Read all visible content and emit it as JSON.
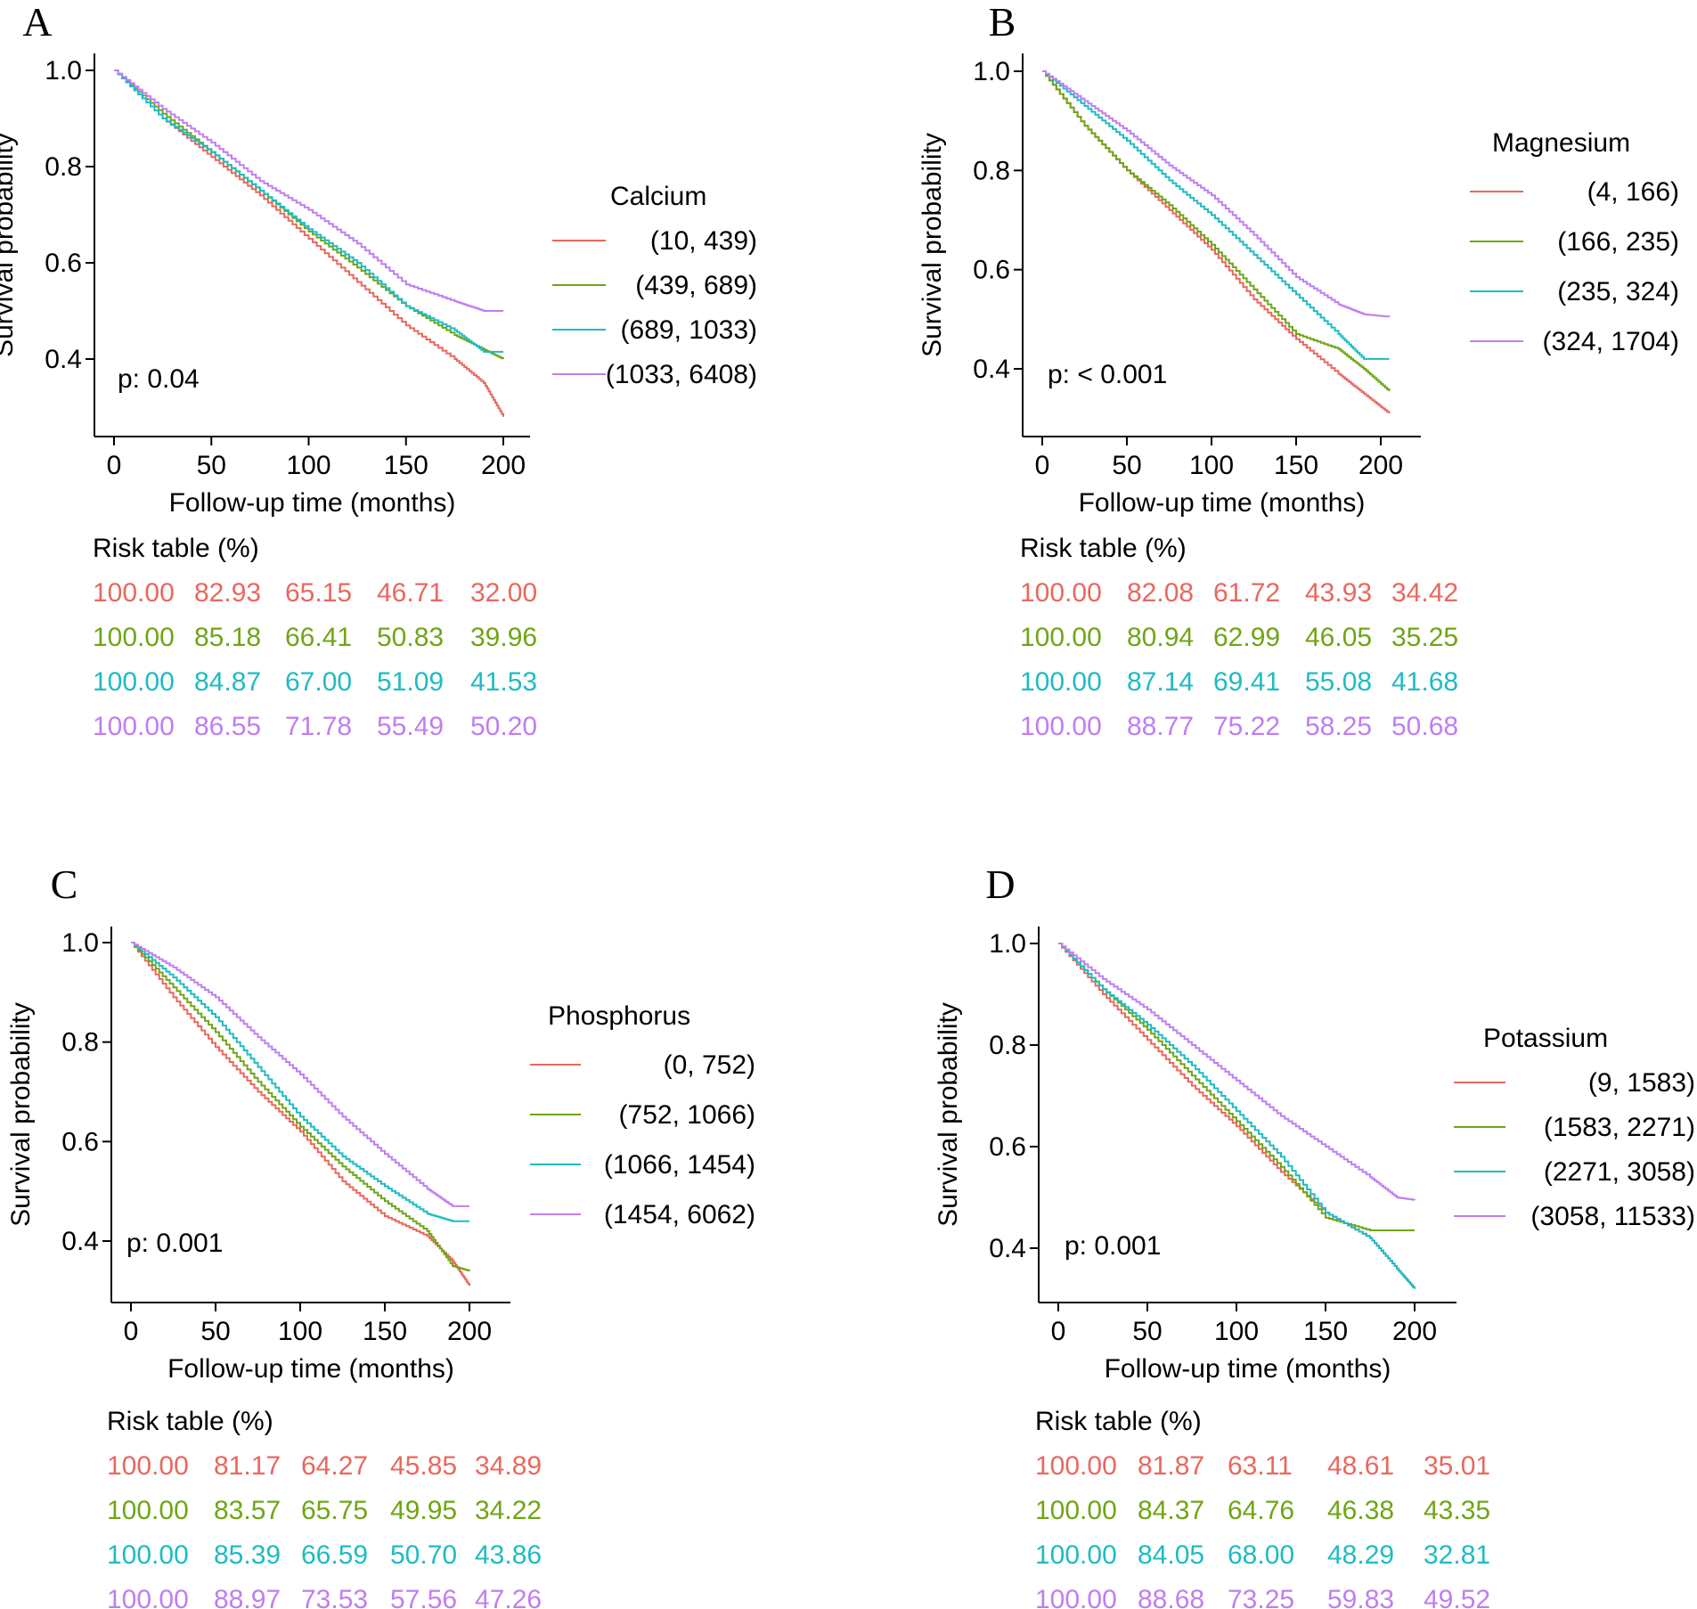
{
  "colors": [
    "#E8685E",
    "#6FA516",
    "#1FBBC3",
    "#C07EF0"
  ],
  "common": {
    "xlabel": "Follow-up time (months)",
    "ylabel": "Survival probability",
    "risk_title": "Risk table (%)",
    "xticks": [
      "0",
      "50",
      "100",
      "150",
      "200"
    ],
    "yticks": [
      "0.4",
      "0.6",
      "0.8",
      "1.0"
    ]
  },
  "chart_data": [
    {
      "type": "line",
      "panel": "A",
      "title": "",
      "legend_title": "Calcium",
      "p_text": "p: 0.04",
      "xlabel": "Follow-up time (months)",
      "ylabel": "Survival probability",
      "xlim": [
        0,
        205
      ],
      "ylim": [
        0.28,
        1.0
      ],
      "x": [
        0,
        25,
        50,
        75,
        100,
        125,
        150,
        175,
        190,
        200
      ],
      "series": [
        {
          "name": "(10, 439)",
          "values": [
            1.0,
            0.9,
            0.82,
            0.74,
            0.65,
            0.56,
            0.47,
            0.4,
            0.35,
            0.28
          ]
        },
        {
          "name": "(439, 689)",
          "values": [
            1.0,
            0.91,
            0.83,
            0.75,
            0.665,
            0.59,
            0.51,
            0.45,
            0.42,
            0.4
          ]
        },
        {
          "name": "(689, 1033)",
          "values": [
            1.0,
            0.9,
            0.83,
            0.75,
            0.67,
            0.6,
            0.51,
            0.46,
            0.415,
            0.415
          ]
        },
        {
          "name": "(1033, 6408)",
          "values": [
            1.0,
            0.92,
            0.85,
            0.77,
            0.71,
            0.64,
            0.555,
            0.52,
            0.5,
            0.5
          ]
        }
      ],
      "risk_table": [
        [
          "100.00",
          "82.93",
          "65.15",
          "46.71",
          "32.00"
        ],
        [
          "100.00",
          "85.18",
          "66.41",
          "50.83",
          "39.96"
        ],
        [
          "100.00",
          "84.87",
          "67.00",
          "51.09",
          "41.53"
        ],
        [
          "100.00",
          "86.55",
          "71.78",
          "55.49",
          "50.20"
        ]
      ]
    },
    {
      "type": "line",
      "panel": "B",
      "title": "",
      "legend_title": "Magnesium",
      "p_text": "p: < 0.001",
      "xlabel": "Follow-up time (months)",
      "ylabel": "Survival probability",
      "xlim": [
        0,
        215
      ],
      "ylim": [
        0.3,
        1.0
      ],
      "x": [
        0,
        25,
        50,
        75,
        100,
        125,
        150,
        175,
        190,
        205
      ],
      "series": [
        {
          "name": "(4, 166)",
          "values": [
            1.0,
            0.89,
            0.8,
            0.72,
            0.64,
            0.54,
            0.46,
            0.39,
            0.35,
            0.31
          ]
        },
        {
          "name": "(166, 235)",
          "values": [
            1.0,
            0.89,
            0.8,
            0.73,
            0.65,
            0.56,
            0.47,
            0.44,
            0.4,
            0.355
          ]
        },
        {
          "name": "(235, 324)",
          "values": [
            1.0,
            0.93,
            0.86,
            0.78,
            0.71,
            0.63,
            0.55,
            0.47,
            0.42,
            0.42
          ]
        },
        {
          "name": "(324, 1704)",
          "values": [
            1.0,
            0.94,
            0.88,
            0.81,
            0.75,
            0.67,
            0.585,
            0.53,
            0.51,
            0.505
          ]
        }
      ],
      "risk_table": [
        [
          "100.00",
          "82.08",
          "61.72",
          "43.93",
          "34.42"
        ],
        [
          "100.00",
          "80.94",
          "62.99",
          "46.05",
          "35.25"
        ],
        [
          "100.00",
          "87.14",
          "69.41",
          "55.08",
          "41.68"
        ],
        [
          "100.00",
          "88.77",
          "75.22",
          "58.25",
          "50.68"
        ]
      ]
    },
    {
      "type": "line",
      "panel": "C",
      "title": "",
      "legend_title": "Phosphorus",
      "p_text": "p: 0.001",
      "xlabel": "Follow-up time (months)",
      "ylabel": "Survival probability",
      "xlim": [
        0,
        215
      ],
      "ylim": [
        0.3,
        1.0
      ],
      "x": [
        0,
        25,
        50,
        75,
        100,
        125,
        150,
        175,
        190,
        200
      ],
      "series": [
        {
          "name": "(0, 752)",
          "values": [
            1.0,
            0.89,
            0.79,
            0.7,
            0.62,
            0.52,
            0.45,
            0.41,
            0.36,
            0.31
          ]
        },
        {
          "name": "(752, 1066)",
          "values": [
            1.0,
            0.91,
            0.82,
            0.72,
            0.63,
            0.55,
            0.48,
            0.42,
            0.35,
            0.34
          ]
        },
        {
          "name": "(1066, 1454)",
          "values": [
            1.0,
            0.93,
            0.85,
            0.75,
            0.65,
            0.57,
            0.51,
            0.455,
            0.44,
            0.44
          ]
        },
        {
          "name": "(1454, 6062)",
          "values": [
            1.0,
            0.95,
            0.89,
            0.81,
            0.735,
            0.65,
            0.575,
            0.505,
            0.47,
            0.47
          ]
        }
      ],
      "risk_table": [
        [
          "100.00",
          "81.17",
          "64.27",
          "45.85",
          "34.89"
        ],
        [
          "100.00",
          "83.57",
          "65.75",
          "49.95",
          "34.22"
        ],
        [
          "100.00",
          "85.39",
          "66.59",
          "50.70",
          "43.86"
        ],
        [
          "100.00",
          "88.97",
          "73.53",
          "57.56",
          "47.26"
        ]
      ]
    },
    {
      "type": "line",
      "panel": "D",
      "title": "",
      "legend_title": "Potassium",
      "p_text": "p: 0.001",
      "xlabel": "Follow-up time (months)",
      "ylabel": "Survival probability",
      "xlim": [
        0,
        215
      ],
      "ylim": [
        0.3,
        1.0
      ],
      "x": [
        0,
        25,
        50,
        75,
        100,
        125,
        150,
        175,
        190,
        200
      ],
      "series": [
        {
          "name": "(9, 1583)",
          "values": [
            1.0,
            0.9,
            0.81,
            0.72,
            0.64,
            0.55,
            0.47,
            0.42,
            0.36,
            0.32
          ]
        },
        {
          "name": "(1583, 2271)",
          "values": [
            1.0,
            0.91,
            0.83,
            0.74,
            0.65,
            0.56,
            0.46,
            0.435,
            0.435,
            0.435
          ]
        },
        {
          "name": "(2271, 3058)",
          "values": [
            1.0,
            0.91,
            0.84,
            0.76,
            0.67,
            0.58,
            0.47,
            0.42,
            0.36,
            0.32
          ]
        },
        {
          "name": "(3058, 11533)",
          "values": [
            1.0,
            0.93,
            0.87,
            0.8,
            0.73,
            0.66,
            0.6,
            0.54,
            0.5,
            0.495
          ]
        }
      ],
      "risk_table": [
        [
          "100.00",
          "81.87",
          "63.11",
          "48.61",
          "35.01"
        ],
        [
          "100.00",
          "84.37",
          "64.76",
          "46.38",
          "43.35"
        ],
        [
          "100.00",
          "84.05",
          "68.00",
          "48.29",
          "32.81"
        ],
        [
          "100.00",
          "88.68",
          "73.25",
          "59.83",
          "49.52"
        ]
      ]
    }
  ]
}
